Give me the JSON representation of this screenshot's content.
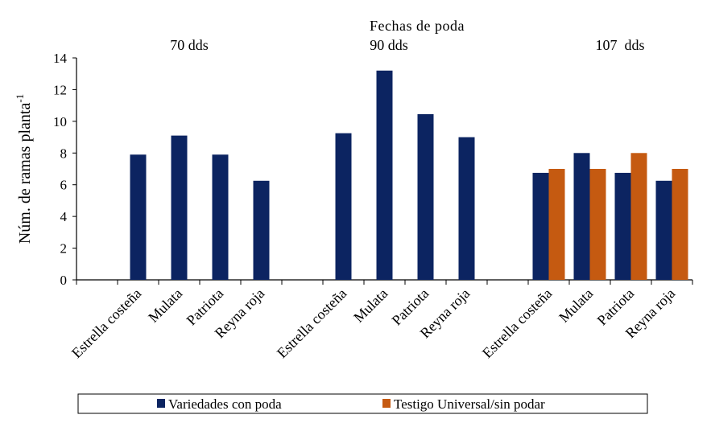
{
  "chart_data": {
    "type": "bar",
    "title": "Fechas de poda",
    "ylabel": "Núm. de ramas planta",
    "ylabel_superscript": "-1",
    "ylim": [
      0,
      14
    ],
    "yticks": [
      0,
      2,
      4,
      6,
      8,
      10,
      12,
      14
    ],
    "grid": false,
    "legend_position": "bottom",
    "colors": {
      "Variedades con poda": "#0c2461",
      "Testigo Universal/sin podar": "#c55a11"
    },
    "groups": [
      {
        "label": "70 dds",
        "categories": [
          "Estrella costeña",
          "Mulata",
          "Patriota",
          "Reyna roja"
        ],
        "series": [
          {
            "name": "Variedades con poda",
            "values": [
              7.9,
              9.1,
              7.9,
              6.25
            ]
          }
        ]
      },
      {
        "label": "90 dds",
        "categories": [
          "Estrella costeña",
          "Mulata",
          "Patriota",
          "Reyna roja"
        ],
        "series": [
          {
            "name": "Variedades con poda",
            "values": [
              9.25,
              13.2,
              10.45,
              9.0
            ]
          }
        ]
      },
      {
        "label": "107  dds",
        "categories": [
          "Estrella costeña",
          "Mulata",
          "Patriota",
          "Reyna roja"
        ],
        "series": [
          {
            "name": "Variedades con poda",
            "values": [
              6.75,
              8.0,
              6.75,
              6.25
            ]
          },
          {
            "name": "Testigo Universal/sin podar",
            "values": [
              7.0,
              7.0,
              8.0,
              7.0
            ]
          }
        ]
      }
    ],
    "legend": [
      "Variedades con poda",
      "Testigo Universal/sin podar"
    ]
  }
}
